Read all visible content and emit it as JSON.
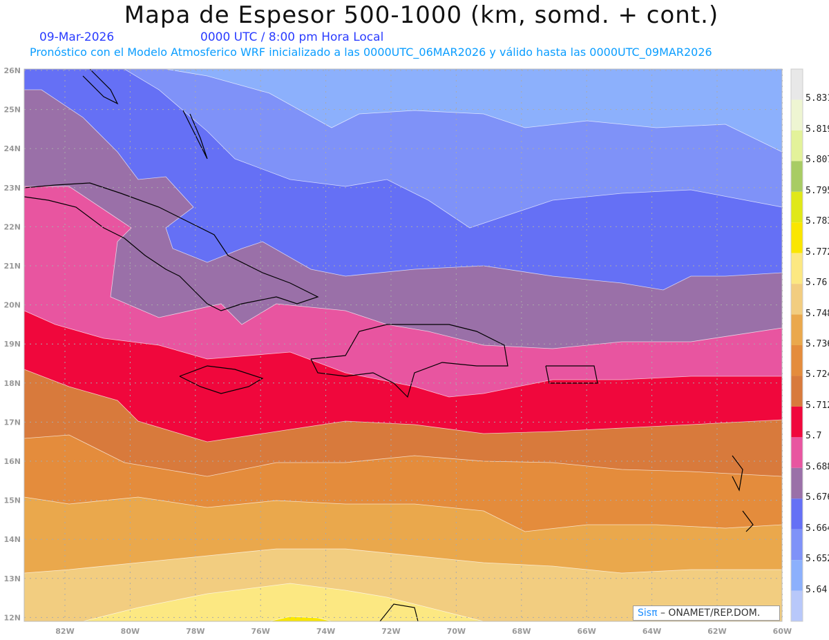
{
  "header": {
    "title": "Mapa de Espesor 500-1000 (km, somd. + cont.)",
    "date": "09-Mar-2026",
    "time": "0000 UTC / 8:00 pm Hora Local",
    "description": "Pronóstico con el Modelo Atmosferico WRF inicializado a las 0000UTC_06MAR2026 y válido hasta las  0000UTC_09MAR2026"
  },
  "map": {
    "lat_labels": [
      "26N",
      "25N",
      "24N",
      "23N",
      "22N",
      "21N",
      "20N",
      "19N",
      "18N",
      "17N",
      "16N",
      "15N",
      "14N",
      "13N",
      "12N"
    ],
    "lon_labels": [
      "82W",
      "80W",
      "78W",
      "76W",
      "74W",
      "72W",
      "70W",
      "68W",
      "66W",
      "64W",
      "62W",
      "60W"
    ]
  },
  "colorbar": {
    "labels": [
      "5.831",
      "5.819",
      "5.807",
      "5.795",
      "5.783",
      "5.772",
      "5.76",
      "5.748",
      "5.736",
      "5.724",
      "5.712",
      "5.7",
      "5.688",
      "5.676",
      "5.664",
      "5.652",
      "5.64"
    ],
    "colors": [
      "#e8e8e8",
      "#eef5d2",
      "#e3f29a",
      "#a8cc64",
      "#e0e818",
      "#fae600",
      "#fce882",
      "#f2cd80",
      "#eaa84c",
      "#e48c3c",
      "#d87a3c",
      "#f0073c",
      "#e855a0",
      "#9a70a8",
      "#6570f5",
      "#7f92f8",
      "#8cb0fc",
      "#b8c8fa"
    ]
  },
  "credit": {
    "logo": "Sisπ",
    "text": " – ONAMET/REP.DOM."
  }
}
